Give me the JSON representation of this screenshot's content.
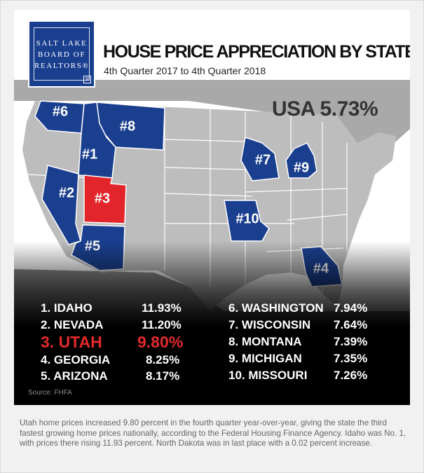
{
  "logo": {
    "lines": [
      "SALT LAKE",
      "BOARD OF",
      "REALTORS®"
    ],
    "mark": "R"
  },
  "header": {
    "title": "HOUSE PRICE APPRECIATION BY STATE",
    "subtitle": "4th Quarter 2017 to 4th Quarter 2018"
  },
  "usa_total": "USA 5.73%",
  "colors": {
    "ranked_state": "#1b3f8f",
    "utah": "#e2252b",
    "other_state": "#bdbdbd",
    "border": "#ffffff"
  },
  "map_labels": [
    {
      "state": "Idaho",
      "label": "#1"
    },
    {
      "state": "Nevada",
      "label": "#2"
    },
    {
      "state": "Utah",
      "label": "#3"
    },
    {
      "state": "Georgia",
      "label": "#4"
    },
    {
      "state": "Arizona",
      "label": "#5"
    },
    {
      "state": "Washington",
      "label": "#6"
    },
    {
      "state": "Wisconsin",
      "label": "#7"
    },
    {
      "state": "Montana",
      "label": "#8"
    },
    {
      "state": "Michigan",
      "label": "#9"
    },
    {
      "state": "Missouri",
      "label": "#10"
    }
  ],
  "ranking_left": [
    {
      "rank": "1. IDAHO",
      "value": "11.93%"
    },
    {
      "rank": "2. NEVADA",
      "value": "11.20%"
    },
    {
      "rank": "3. UTAH",
      "value": "9.80%"
    },
    {
      "rank": "4. GEORGIA",
      "value": "8.25%"
    },
    {
      "rank": "5. ARIZONA",
      "value": "8.17%"
    }
  ],
  "ranking_right": [
    {
      "rank": "6. WASHINGTON",
      "value": "7.94%"
    },
    {
      "rank": "7. WISCONSIN",
      "value": "7.64%"
    },
    {
      "rank": "8. MONTANA",
      "value": "7.39%"
    },
    {
      "rank": "9. MICHIGAN",
      "value": "7.35%"
    },
    {
      "rank": "10. MISSOURI",
      "value": "7.26%"
    }
  ],
  "source": "Source: FHFA",
  "caption": "Utah home prices increased 9.80 percent in the fourth quarter year-over-year, giving the state the third fastest growing home prices nationally, according to the Federal Housing Finance Agency. Idaho was No. 1, with prices there rising 11.93 percent. North Dakota was in last place with a 0.02 percent increase."
}
